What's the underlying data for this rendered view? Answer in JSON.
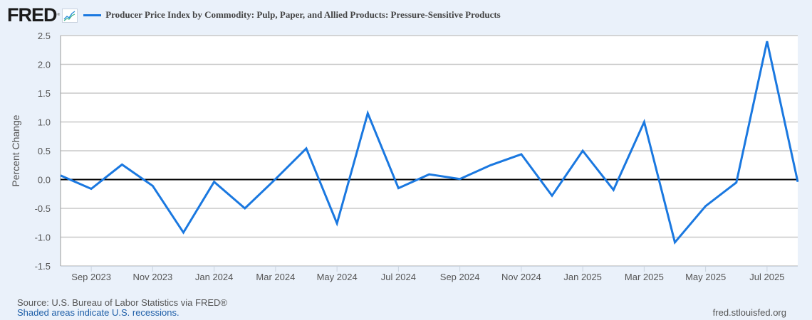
{
  "header": {
    "logo": "FRED",
    "logo_icon": "line-chart-icon",
    "legend_label": "Producer Price Index by Commodity: Pulp, Paper, and Allied Products: Pressure-Sensitive Products",
    "series_color": "#1a78e0"
  },
  "footer": {
    "source": "Source: U.S. Bureau of Labor Statistics via FRED®",
    "note": "Shaded areas indicate U.S. recessions.",
    "url": "fred.stlouisfed.org"
  },
  "chart_data": {
    "type": "line",
    "title": "Producer Price Index by Commodity: Pulp, Paper, and Allied Products: Pressure-Sensitive Products",
    "xlabel": "",
    "ylabel": "Percent Change",
    "ylim": [
      -1.5,
      2.5
    ],
    "yticks": [
      "2.5",
      "2.0",
      "1.5",
      "1.0",
      "0.5",
      "0.0",
      "-0.5",
      "-1.0",
      "-1.5"
    ],
    "ytick_values": [
      2.5,
      2.0,
      1.5,
      1.0,
      0.5,
      0.0,
      -0.5,
      -1.0,
      -1.5
    ],
    "xtick_labels": [
      "Sep 2023",
      "Nov 2023",
      "Jan 2024",
      "Mar 2024",
      "May 2024",
      "Jul 2024",
      "Sep 2024",
      "Nov 2024",
      "Jan 2025",
      "Mar 2025",
      "May 2025",
      "Jul 2025"
    ],
    "grid": true,
    "legend_position": "top",
    "x": [
      "Aug 2023",
      "Sep 2023",
      "Oct 2023",
      "Nov 2023",
      "Dec 2023",
      "Jan 2024",
      "Feb 2024",
      "Mar 2024",
      "Apr 2024",
      "May 2024",
      "Jun 2024",
      "Jul 2024",
      "Aug 2024",
      "Sep 2024",
      "Oct 2024",
      "Nov 2024",
      "Dec 2024",
      "Jan 2025",
      "Feb 2025",
      "Mar 2025",
      "Apr 2025",
      "May 2025",
      "Jun 2025",
      "Jul 2025",
      "Aug 2025"
    ],
    "series": [
      {
        "name": "Producer Price Index by Commodity: Pulp, Paper, and Allied Products: Pressure-Sensitive Products",
        "color": "#1a78e0",
        "values": [
          0.07,
          -0.16,
          0.26,
          -0.11,
          -0.92,
          -0.04,
          -0.5,
          0.01,
          0.54,
          -0.76,
          1.15,
          -0.15,
          0.09,
          0.01,
          0.25,
          0.44,
          -0.28,
          0.5,
          -0.18,
          1.0,
          -1.09,
          -0.46,
          -0.05,
          2.4,
          -0.04
        ]
      }
    ]
  }
}
